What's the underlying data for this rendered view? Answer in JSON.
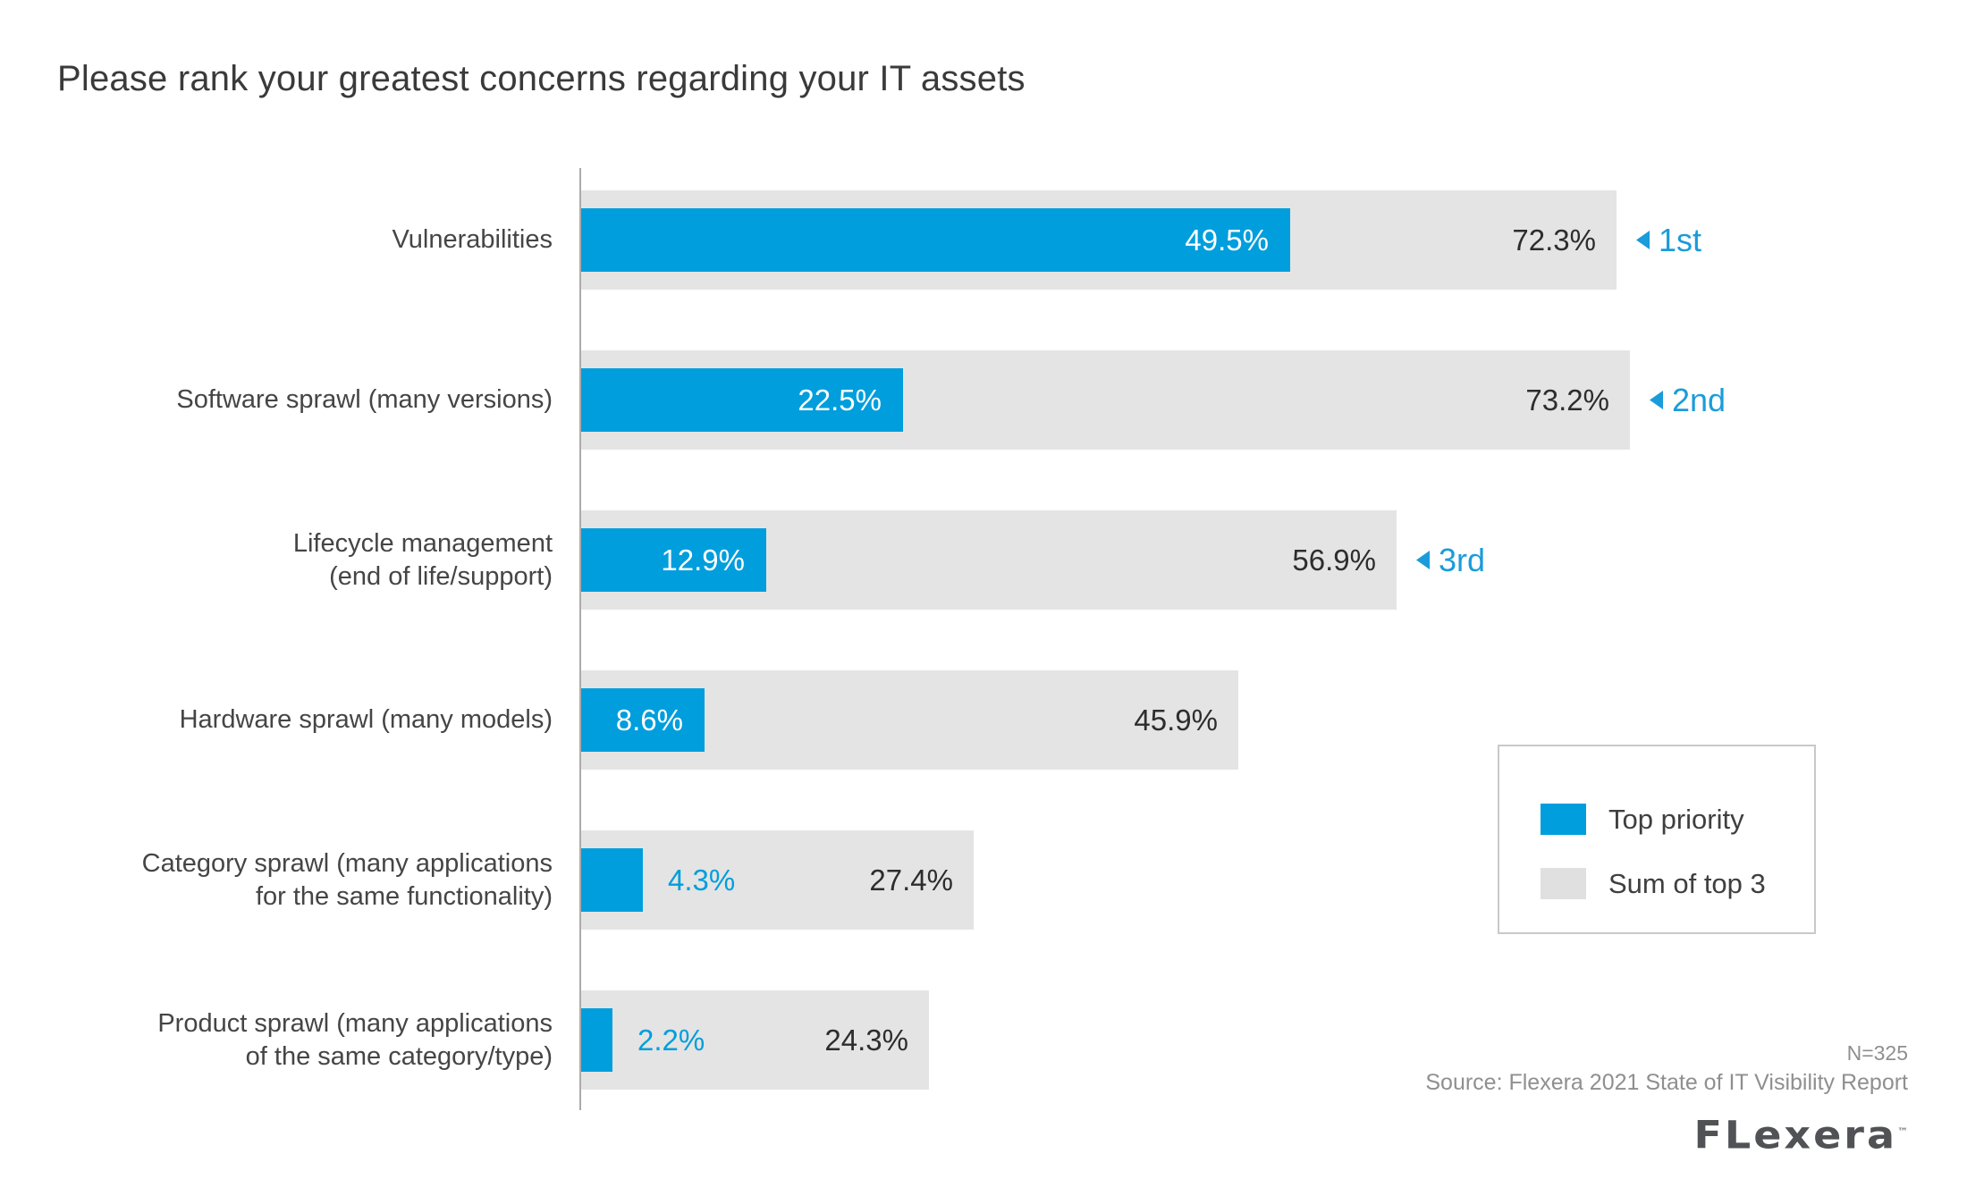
{
  "title": "Please rank your greatest concerns regarding your IT assets",
  "colors": {
    "top_priority_blue": "#009edc",
    "sum_top3_gray": "#e4e4e4",
    "axis_gray": "#ababab",
    "text_dark": "#2d2d2d",
    "rank_blue": "#1a9cda"
  },
  "chart_data": {
    "type": "bar",
    "orientation": "horizontal",
    "title": "Please rank your greatest concerns regarding your IT assets",
    "categories": [
      "Vulnerabilities",
      "Software sprawl (many versions)",
      "Lifecycle management (end of life/support)",
      "Hardware sprawl (many models)",
      "Category sprawl (many applications for the same functionality)",
      "Product sprawl (many applications of the same category/type)"
    ],
    "category_lines": [
      [
        "Vulnerabilities"
      ],
      [
        "Software sprawl (many versions)"
      ],
      [
        "Lifecycle management",
        "(end of life/support)"
      ],
      [
        "Hardware sprawl (many models)"
      ],
      [
        "Category sprawl (many applications",
        "for the same functionality)"
      ],
      [
        "Product sprawl (many applications",
        "of the same category/type)"
      ]
    ],
    "series": [
      {
        "name": "Top priority",
        "color": "#009edc",
        "values": [
          49.5,
          22.5,
          12.9,
          8.6,
          4.3,
          2.2
        ]
      },
      {
        "name": "Sum of top 3",
        "color": "#e4e4e4",
        "values": [
          72.3,
          73.2,
          56.9,
          45.9,
          27.4,
          24.3
        ]
      }
    ],
    "value_labels": {
      "top_priority": [
        "49.5%",
        "22.5%",
        "12.9%",
        "8.6%",
        "4.3%",
        "2.2%"
      ],
      "sum_of_top3": [
        "72.3%",
        "73.2%",
        "56.9%",
        "45.9%",
        "27.4%",
        "24.3%"
      ]
    },
    "ranks": [
      "1st",
      "2nd",
      "3rd",
      "",
      "",
      ""
    ],
    "xlim": [
      0,
      75
    ],
    "grid": false,
    "legend_position": "right-middle"
  },
  "legend": {
    "items": [
      {
        "label": "Top priority",
        "color": "#009edc"
      },
      {
        "label": "Sum of top 3",
        "color": "#e0e0e0"
      }
    ]
  },
  "footer": {
    "n": "N=325",
    "source": "Source: Flexera 2021 State of IT Visibility Report",
    "logo_text": "FLexera",
    "logo_tm": "™"
  }
}
